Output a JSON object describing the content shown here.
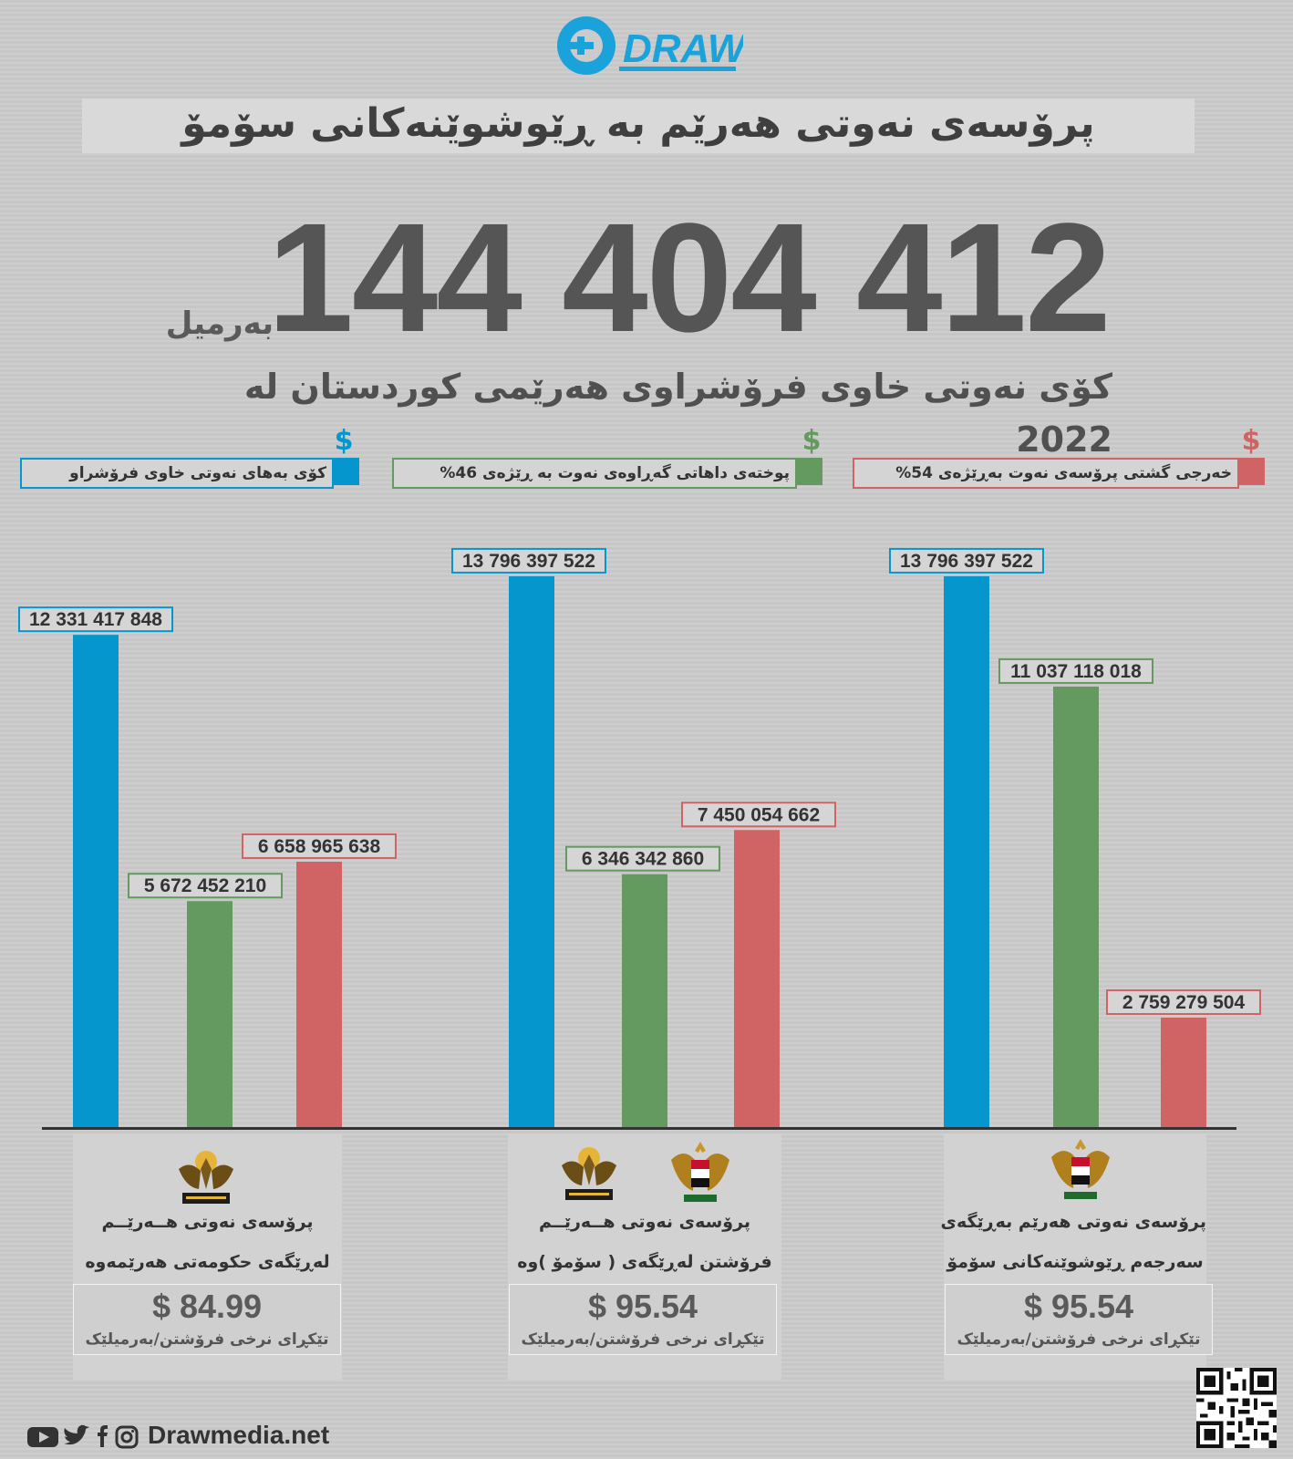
{
  "brand": {
    "logo_text": "DRAW",
    "site": "Drawmedia.net"
  },
  "header": {
    "title": "پرۆسەی نەوتی هەرێم بە ڕێوشوێنەکانی سۆمۆ",
    "total_number": "144 404 412",
    "total_unit": "بەرمیل",
    "subtitle": "کۆی نەوتی خاوی فرۆشراوی هەرێمی کوردستان لە 2022"
  },
  "legend": [
    {
      "label": "کۆی بەهای نەوتی خاوی فرۆشراو",
      "color": "#0596cd",
      "symbol": "$"
    },
    {
      "label": "پوختەی داهاتی گەڕاوەی نەوت بە ڕێژەی 46%",
      "color": "#64995f",
      "symbol": "$"
    },
    {
      "label": "خەرجی گشتی پرۆسەی نەوت بەڕێژەی 54%",
      "color": "#d06363",
      "symbol": "$"
    }
  ],
  "chart_data": {
    "type": "bar",
    "title": "پرۆسەی نەوتی هەرێم بە ڕێوشوێنەکانی سۆمۆ",
    "categories": [
      "left",
      "middle",
      "right"
    ],
    "ylim": [
      0,
      14000000000
    ],
    "series": [
      {
        "name": "کۆی بەهای نەوتی خاوی فرۆشراو",
        "color": "#0596cd",
        "values": [
          12331417848,
          13796397522,
          13796397522
        ],
        "labels": [
          "12 331 417 848",
          "13 796 397 522",
          "13 796 397 522"
        ]
      },
      {
        "name": "پوختەی داهاتی گەڕاوەی نەوت بە ڕێژەی 46%",
        "color": "#64995f",
        "values": [
          5672452210,
          6346342860,
          11037118018
        ],
        "labels": [
          "5 672 452 210",
          "6 346 342 860",
          "11 037 118 018"
        ]
      },
      {
        "name": "خەرجی گشتی پرۆسەی نەوت بەڕێژەی 54%",
        "color": "#d06363",
        "values": [
          6658965638,
          7450054662,
          2759279504
        ],
        "labels": [
          "6 658 965 638",
          "7 450 054 662",
          "2 759 279 504"
        ]
      }
    ]
  },
  "groups": [
    {
      "line1": "پرۆسەی نەوتی هــەرێــم",
      "line2": "لەڕێگەی حکومەتی هەرێمەوە",
      "price": "$ 84.99",
      "price_label": "تێکڕای نرخی فرۆشتن/بەرمیلێک"
    },
    {
      "line1": "پرۆسەی نەوتی هــەرێــم",
      "line2": "فرۆشتن لەڕێگەی ( سۆمۆ )وە",
      "price": "$ 95.54",
      "price_label": "تێکڕای نرخی فرۆشتن/بەرمیلێک"
    },
    {
      "line1": "پرۆسەی نەوتی هەرێم بەڕێگەی",
      "line2": "سەرجەم ڕێوشوێنەکانی سۆمۆ",
      "price": "$ 95.54",
      "price_label": "تێکڕای نرخی فرۆشتن/بەرمیلێک"
    }
  ]
}
